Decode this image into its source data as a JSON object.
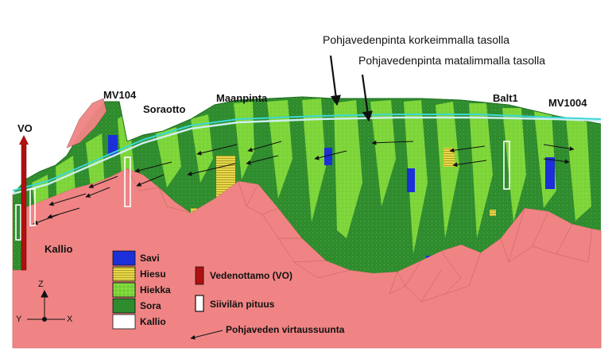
{
  "colors": {
    "bedrock": "#f08484",
    "gravel": "#2e8b2e",
    "sand": "#7ed63a",
    "silt": "#e8d84a",
    "clay": "#1c2fd8",
    "intake": "#b01010",
    "water_high": "#3ad8d8",
    "water_low": "#bfeeee",
    "screen": "#ffffff"
  },
  "labels": {
    "water_high": "Pohjavedenpinta korkeimmalla tasolla",
    "water_low": "Pohjavedenpinta matalimmalla tasolla",
    "mv104": "MV104",
    "soraotto": "Soraotto",
    "maanpinta": "Maanpinta",
    "balt1": "Balt1",
    "mv1004": "MV1004",
    "vo": "VO",
    "kallio": "Kallio"
  },
  "legend": {
    "materials": [
      {
        "name": "Savi",
        "color": "#1c2fd8"
      },
      {
        "name": "Hiesu",
        "color": "#e8d84a"
      },
      {
        "name": "Hiekka",
        "color": "#7ed63a"
      },
      {
        "name": "Sora",
        "color": "#2e8b2e"
      },
      {
        "name": "Kallio",
        "color": "#ffffff"
      }
    ],
    "intake": "Vedenottamo (VO)",
    "screen": "Siivilän pituus",
    "flow": "Pohjaveden virtaussuunta"
  },
  "axes": {
    "z": "Z",
    "x": "X",
    "y": "Y"
  }
}
